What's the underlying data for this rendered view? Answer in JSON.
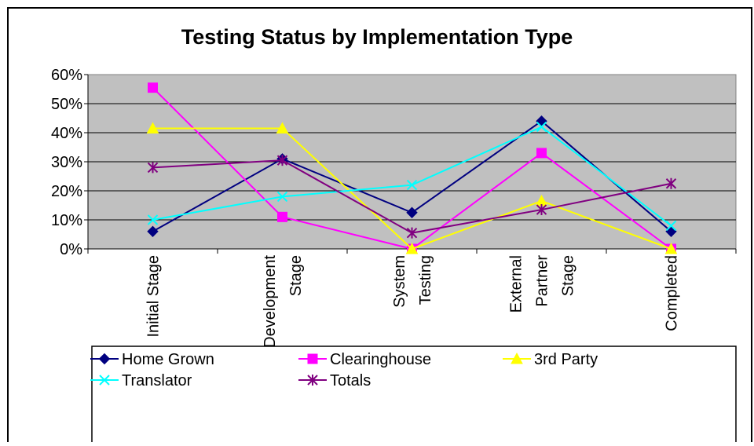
{
  "chart_data": {
    "type": "line",
    "title": "Testing Status by Implementation Type",
    "categories": [
      "Initial Stage",
      "Development\nStage",
      "System\nTesting",
      "External\nPartner\nStage",
      "Completed"
    ],
    "series": [
      {
        "name": "Home Grown",
        "color": "#000080",
        "marker": "diamond",
        "values": [
          6,
          31,
          12.5,
          44,
          6
        ]
      },
      {
        "name": "Clearinghouse",
        "color": "#FF00FF",
        "marker": "square",
        "values": [
          55.5,
          11,
          0,
          33,
          0
        ]
      },
      {
        "name": "3rd Party",
        "color": "#FFFF00",
        "marker": "triangle",
        "values": [
          41.5,
          41.5,
          0,
          16.5,
          0
        ]
      },
      {
        "name": "Translator",
        "color": "#00FFFF",
        "marker": "x",
        "values": [
          10,
          18,
          22,
          42,
          8
        ]
      },
      {
        "name": "Totals",
        "color": "#800080",
        "marker": "asterisk",
        "values": [
          28,
          30.5,
          5.5,
          13.5,
          22.5
        ]
      }
    ],
    "ylim": [
      0,
      60
    ],
    "yticks": [
      {
        "value": 0,
        "label": "0%"
      },
      {
        "value": 10,
        "label": "10%"
      },
      {
        "value": 20,
        "label": "20%"
      },
      {
        "value": 30,
        "label": "30%"
      },
      {
        "value": 40,
        "label": "40%"
      },
      {
        "value": 50,
        "label": "50%"
      },
      {
        "value": 60,
        "label": "60%"
      }
    ],
    "grid": true,
    "legend": "bottom"
  }
}
